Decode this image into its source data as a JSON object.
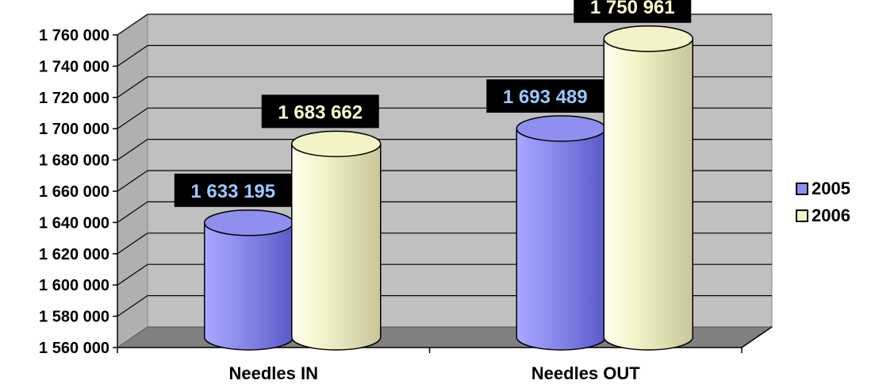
{
  "chart_data": {
    "type": "bar",
    "style": "3d-cylinder",
    "categories": [
      "Needles IN",
      "Needles OUT"
    ],
    "series": [
      {
        "name": "2005",
        "values": [
          1633195,
          1693489
        ],
        "labels": [
          "1 633 195",
          "1 693 489"
        ],
        "color": "#8f8ff0",
        "label_color": "#9ac8ff"
      },
      {
        "name": "2006",
        "values": [
          1683662,
          1750961
        ],
        "labels": [
          "1 683 662",
          "1 750 961"
        ],
        "color": "#f4f3c8",
        "label_color": "#ffffcc"
      }
    ],
    "ylim": [
      1560000,
      1760000
    ],
    "yticks": [
      1560000,
      1580000,
      1600000,
      1620000,
      1640000,
      1660000,
      1680000,
      1700000,
      1720000,
      1740000,
      1760000
    ],
    "ytick_labels": [
      "1 560 000",
      "1 580 000",
      "1 600 000",
      "1 620 000",
      "1 640 000",
      "1 660 000",
      "1 680 000",
      "1 700 000",
      "1 720 000",
      "1 740 000",
      "1 760 000"
    ],
    "grid": true,
    "legend_position": "right",
    "wall_color": "#c0c0c0",
    "floor_color": "#808080"
  }
}
